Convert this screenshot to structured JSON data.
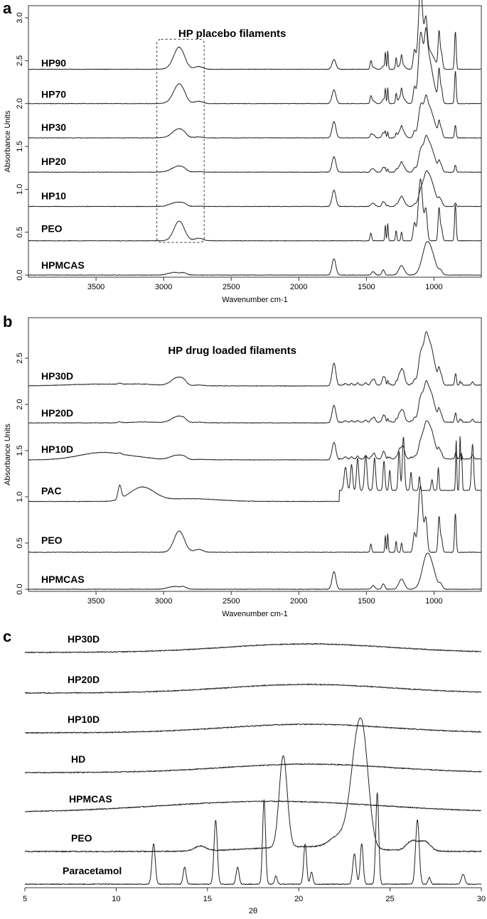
{
  "chart_data": [
    {
      "panel": "a",
      "type": "line",
      "title": "HP placebo filaments",
      "xlabel": "Wavenumber cm-1",
      "ylabel": "Absorbance Units",
      "xlim": [
        4000,
        650
      ],
      "ylim": [
        0,
        3.1
      ],
      "x_reversed": true,
      "xticks": [
        "3500",
        "3000",
        "2500",
        "2000",
        "1500",
        "1000"
      ],
      "xtick_values": [
        3500,
        3000,
        2500,
        2000,
        1500,
        1000
      ],
      "yticks": [
        "0.0",
        "0.5",
        "1.0",
        "1.5",
        "2.0",
        "2.5",
        "3.0"
      ],
      "ytick_values": [
        0,
        0.5,
        1.0,
        1.5,
        2.0,
        2.5,
        3.0
      ],
      "highlight_box": {
        "x_range": [
          3050,
          2700
        ],
        "y_range": [
          0.38,
          2.75
        ]
      },
      "series": [
        {
          "name": "HP90",
          "baseline": 2.4,
          "profile": "hp90"
        },
        {
          "name": "HP70",
          "baseline": 2.0,
          "profile": "hp70"
        },
        {
          "name": "HP30",
          "baseline": 1.6,
          "profile": "hp30"
        },
        {
          "name": "HP20",
          "baseline": 1.2,
          "profile": "hp20"
        },
        {
          "name": "HP10",
          "baseline": 0.8,
          "profile": "hp10"
        },
        {
          "name": "PEO",
          "baseline": 0.4,
          "profile": "peo"
        },
        {
          "name": "HPMCAS",
          "baseline": 0.0,
          "profile": "hpmcas"
        }
      ]
    },
    {
      "panel": "b",
      "type": "line",
      "title": "HP drug loaded filaments",
      "xlabel": "Wavenumber cm-1",
      "ylabel": "Absorbance Units",
      "xlim": [
        4000,
        650
      ],
      "ylim": [
        0,
        2.9
      ],
      "x_reversed": true,
      "xticks": [
        "3500",
        "3000",
        "2500",
        "2000",
        "1500",
        "1000"
      ],
      "xtick_values": [
        3500,
        3000,
        2500,
        2000,
        1500,
        1000
      ],
      "yticks": [
        "0.0",
        "0.5",
        "1.0",
        "1.5",
        "2.0",
        "2.5"
      ],
      "ytick_values": [
        0,
        0.5,
        1.0,
        1.5,
        2.0,
        2.5
      ],
      "series": [
        {
          "name": "HP30D",
          "baseline": 2.2,
          "profile": "hp30d"
        },
        {
          "name": "HP20D",
          "baseline": 1.8,
          "profile": "hp20d"
        },
        {
          "name": "HP10D",
          "baseline": 1.4,
          "profile": "hp10d"
        },
        {
          "name": "PAC",
          "baseline": 0.95,
          "profile": "pac"
        },
        {
          "name": "PEO",
          "baseline": 0.4,
          "profile": "peo"
        },
        {
          "name": "HPMCAS",
          "baseline": 0.0,
          "profile": "hpmcas"
        }
      ]
    },
    {
      "panel": "c",
      "type": "line",
      "xlabel": "2θ",
      "xlim": [
        5,
        30
      ],
      "xticks": [
        "5",
        "10",
        "15",
        "20",
        "25",
        "30"
      ],
      "xtick_values": [
        5,
        10,
        15,
        20,
        25,
        30
      ],
      "series": [
        {
          "name": "HP30D",
          "profile": "amorphous"
        },
        {
          "name": "HP20D",
          "profile": "amorphous"
        },
        {
          "name": "HP10D",
          "profile": "amorphous"
        },
        {
          "name": "HD",
          "profile": "amorphous"
        },
        {
          "name": "HPMCAS",
          "profile": "amorphous_broad"
        },
        {
          "name": "PEO",
          "profile": "peo_xrd",
          "peaks_2theta": [
            19.1,
            23.3
          ]
        },
        {
          "name": "Paracetamol",
          "profile": "paracetamol_xrd",
          "peaks_2theta": [
            12.1,
            13.8,
            15.5,
            16.7,
            18.1,
            20.4,
            23.1,
            23.5,
            24.3,
            26.5,
            29.0
          ]
        }
      ]
    }
  ]
}
